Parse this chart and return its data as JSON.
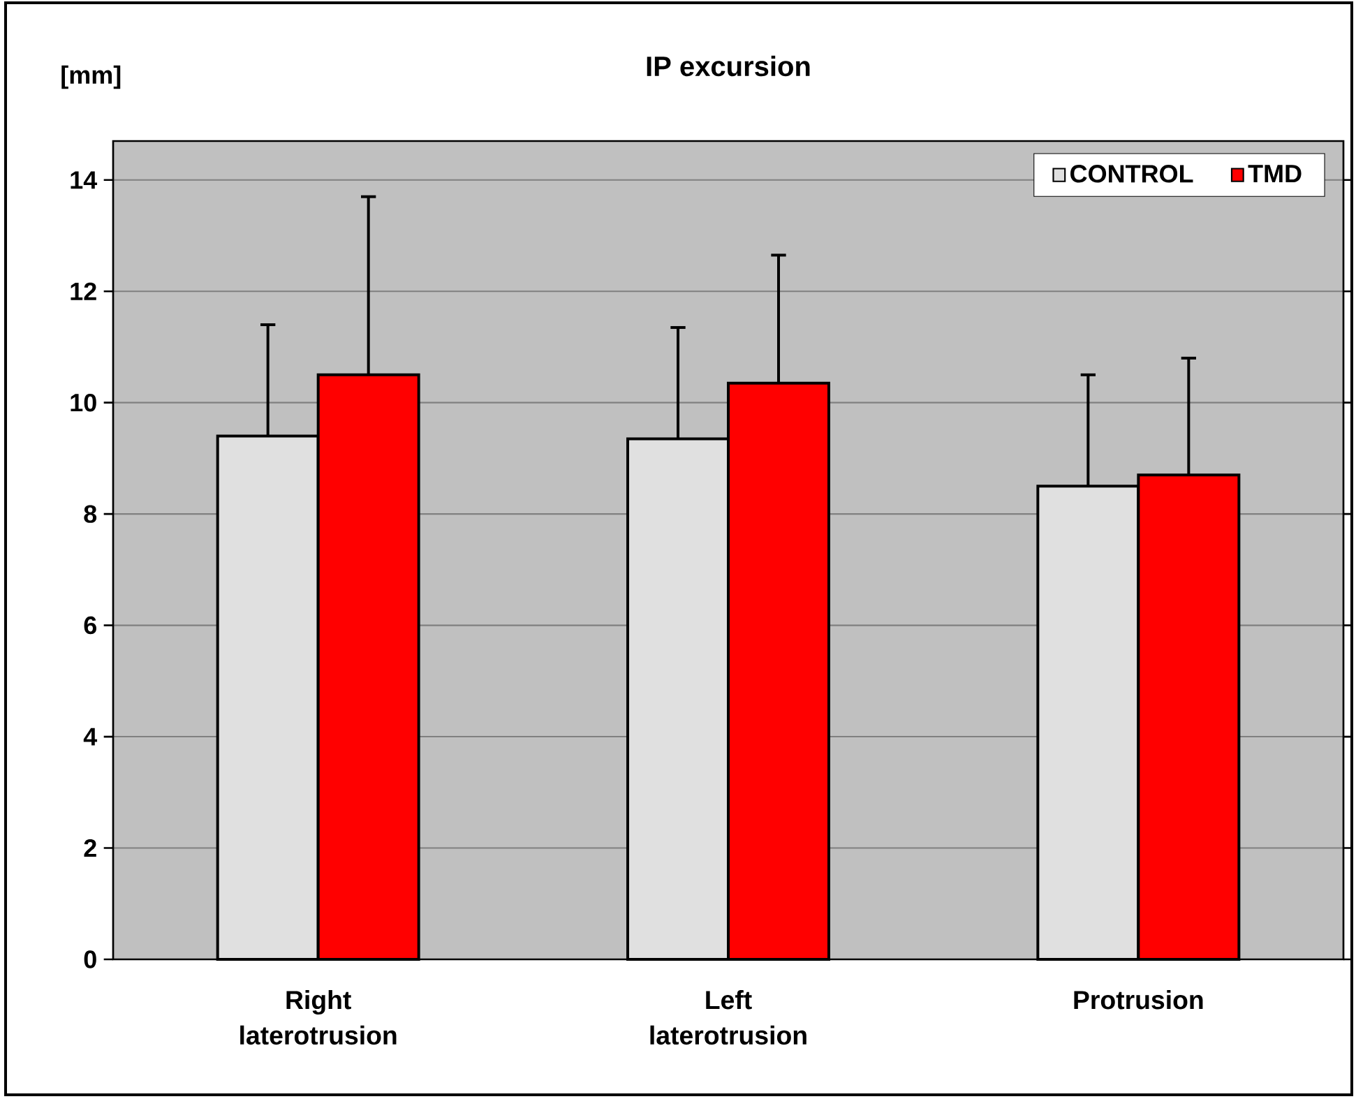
{
  "chart_data": {
    "type": "bar",
    "title": "IP excursion",
    "ylabel": "[mm]",
    "categories": [
      "Right laterotrusion",
      "Left laterotrusion",
      "Protrusion"
    ],
    "series": [
      {
        "name": "CONTROL",
        "color": "#e0e0e0",
        "values": [
          9.4,
          9.35,
          8.5
        ],
        "errors": [
          [
            9.4,
            11.4
          ],
          [
            9.35,
            11.35
          ],
          [
            8.5,
            10.5
          ]
        ]
      },
      {
        "name": "TMD",
        "color": "#ff0000",
        "values": [
          10.5,
          10.35,
          8.7
        ],
        "errors": [
          [
            10.5,
            13.7
          ],
          [
            10.35,
            12.65
          ],
          [
            8.7,
            10.8
          ]
        ]
      }
    ],
    "ylim": [
      0,
      14.7
    ],
    "yticks": [
      0,
      2,
      4,
      6,
      8,
      10,
      12,
      14
    ],
    "grid": "y",
    "legend": "top right"
  }
}
